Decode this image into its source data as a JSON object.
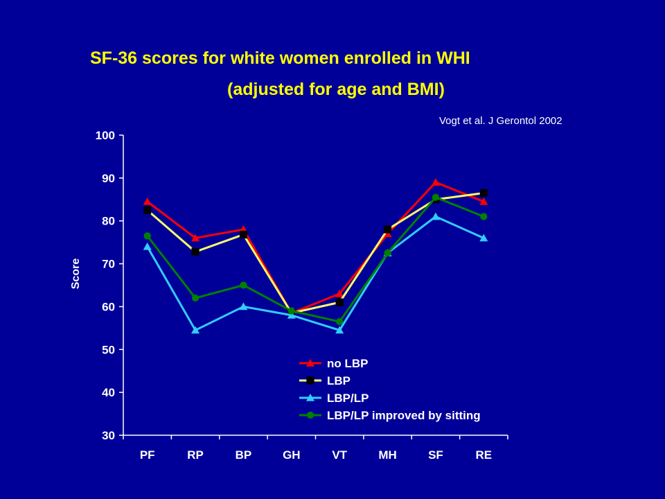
{
  "slide": {
    "title_line1": "SF-36 scores for white women enrolled in WHI",
    "title_line2": "(adjusted for age and BMI)",
    "citation": "Vogt et al. J Gerontol 2002"
  },
  "chart_data": {
    "type": "line",
    "title": "SF-36 scores for white women enrolled in WHI (adjusted for age and BMI)",
    "xlabel": "",
    "ylabel": "Score",
    "categories": [
      "PF",
      "RP",
      "BP",
      "GH",
      "VT",
      "MH",
      "SF",
      "RE"
    ],
    "ylim": [
      30,
      100
    ],
    "yticks": [
      30,
      40,
      50,
      60,
      70,
      80,
      90,
      100
    ],
    "grid": false,
    "legend_position": "lower-center",
    "series": [
      {
        "name": "no LBP",
        "color": "#FF0000",
        "marker": "triangle",
        "values": [
          84.5,
          76,
          78,
          58.5,
          63,
          77,
          89,
          84.5
        ]
      },
      {
        "name": "LBP",
        "color": "#FFFF66",
        "marker": "square",
        "values": [
          82.5,
          72.8,
          76.8,
          58.5,
          61,
          78,
          85,
          86.5
        ]
      },
      {
        "name": "LBP/LP",
        "color": "#33CCFF",
        "marker": "triangle",
        "values": [
          74,
          54.5,
          60,
          58,
          54.5,
          72.5,
          81,
          76
        ]
      },
      {
        "name": "LBP/LP improved by sitting",
        "color": "#008000",
        "marker": "circle",
        "values": [
          76.5,
          62,
          65,
          59,
          56.5,
          72.5,
          85.5,
          81
        ]
      }
    ]
  }
}
